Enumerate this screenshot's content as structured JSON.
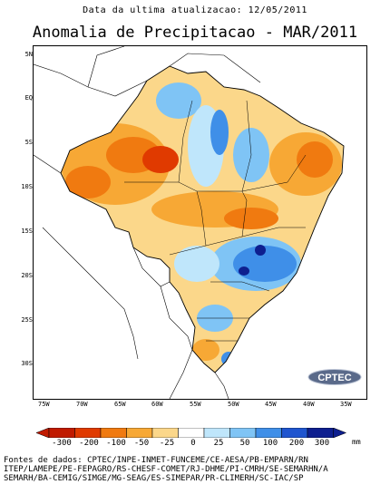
{
  "header": {
    "update_line": "Data da ultima atualizacao: 12/05/2011",
    "title": "Anomalia de Precipitacao - MAR/2011"
  },
  "map": {
    "lat_labels": [
      "5N",
      "EQ",
      "5S",
      "10S",
      "15S",
      "20S",
      "25S",
      "30S"
    ],
    "lon_labels": [
      "75W",
      "70W",
      "65W",
      "60W",
      "55W",
      "50W",
      "45W",
      "40W",
      "35W"
    ],
    "logo_text": "CPTEC"
  },
  "legend": {
    "tick_labels": [
      "-300",
      "-200",
      "-100",
      "-50",
      "-25",
      "0",
      "25",
      "50",
      "100",
      "200",
      "300"
    ],
    "units": "mm",
    "colors": [
      "#c01a00",
      "#e03a00",
      "#f07a10",
      "#f7a835",
      "#fbd78a",
      "#ffffff",
      "#bfe6fb",
      "#7fc4f5",
      "#3f8fe8",
      "#1f55cf",
      "#0e1f8f"
    ]
  },
  "footer": {
    "sources_line1": "Fontes de dados: CPTEC/INPE-INMET-FUNCEME/CE-AESA/PB-EMPARN/RN",
    "sources_line2": "ITEP/LAMEPE/PE-FEPAGRO/RS-CHESF-COMET/RJ-DHME/PI-CMRH/SE-SEMARHN/A",
    "sources_line3": "SEMARH/BA-CEMIG/SIMGE/MG-SEAG/ES-SIMEPAR/PR-CLIMERH/SC-IAC/SP"
  }
}
